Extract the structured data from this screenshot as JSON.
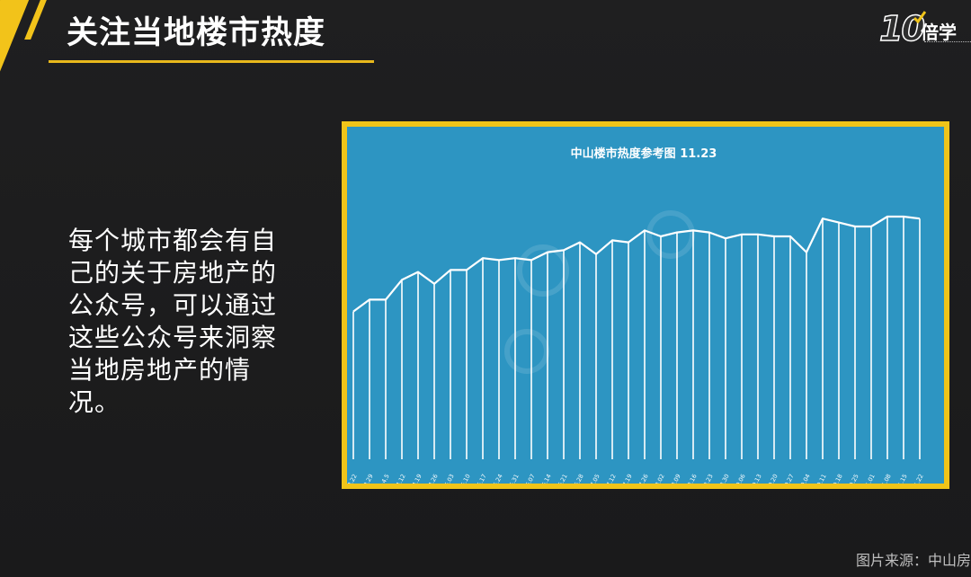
{
  "slide": {
    "title": "关注当地楼市热度",
    "body": "每个城市都会有自己的关于房地产的公众号，可以通过这些公众号来洞察当地房地产的情况。",
    "source": "图片来源：中山房",
    "accent_color": "#f0c419"
  },
  "logo": {
    "mark": "10",
    "text": "倍学"
  },
  "chart_data": {
    "type": "bar",
    "title": "中山楼市热度参考图 11.23",
    "style": "white outline line with vertical drop lines on blue background",
    "background_color": "#2d95c2",
    "line_color": "#ffffff",
    "ylim": [
      0,
      100
    ],
    "categories": [
      "3.16~3.22",
      "3.23~3.29",
      "3.30~4.5",
      "4.6~4.12",
      "4.13~4.19",
      "4.20~4.26",
      "4.27~5.03",
      "5.04~5.10",
      "5.11~5.17",
      "5.18~5.24",
      "5.25~5.31",
      "6.01~6.07",
      "6.08~6.14",
      "6.15~6.21",
      "6.22~6.28",
      "6.29~7.05",
      "7.06~7.12",
      "7.13~7.19",
      "7.20~7.26",
      "7.27~8.02",
      "8.03~8.09",
      "8.10~8.16",
      "8.17~8.23",
      "8.24~8.30",
      "8.31~9.06",
      "9.07~9.13",
      "9.14~9.20",
      "9.21~9.27",
      "9.28~10.04",
      "10.05~10.11",
      "10.12~10.18",
      "10.19~10.25",
      "10.26~11.01",
      "11.01~11.08",
      "11.09~11.15",
      "11.16~11.22"
    ],
    "values": [
      42,
      48,
      48,
      58,
      62,
      56,
      63,
      63,
      69,
      68,
      69,
      68,
      72,
      73,
      77,
      71,
      78,
      77,
      83,
      80,
      82,
      83,
      82,
      79,
      81,
      81,
      80,
      80,
      72,
      89,
      87,
      85,
      85,
      90,
      90,
      89
    ]
  }
}
